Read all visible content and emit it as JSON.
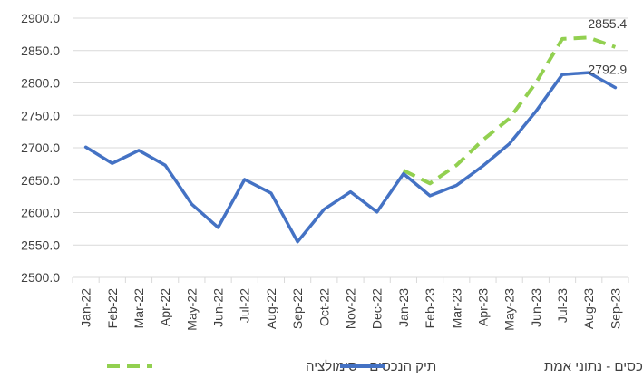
{
  "chart_data": {
    "type": "line",
    "categories": [
      "Jan-22",
      "Feb-22",
      "Mar-22",
      "Apr-22",
      "May-22",
      "Jun-22",
      "Jul-22",
      "Aug-22",
      "Sep-22",
      "Oct-22",
      "Nov-22",
      "Dec-22",
      "Jan-23",
      "Feb-23",
      "Mar-23",
      "Apr-23",
      "May-23",
      "Jun-23",
      "Jul-23",
      "Aug-23",
      "Sep-23"
    ],
    "ylim": [
      2500,
      2900
    ],
    "yticks": [
      "2500.0",
      "2550.0",
      "2600.0",
      "2650.0",
      "2700.0",
      "2750.0",
      "2800.0",
      "2850.0",
      "2900.0"
    ],
    "grid": true,
    "legend_position": "bottom",
    "series": [
      {
        "name": "תיק הנכסים - נתוני אמת",
        "color": "#4472C4",
        "style": "solid",
        "values": [
          2701,
          2676,
          2696,
          2673,
          2613,
          2577,
          2651,
          2630,
          2555,
          2605,
          2632,
          2601,
          2660,
          2626,
          2642,
          2672,
          2706,
          2756,
          2813,
          2816,
          2792.9
        ],
        "end_label": "2792.9"
      },
      {
        "name": "תיק הנכסים - סימולציה",
        "color": "#92D050",
        "style": "dashed",
        "values": [
          null,
          null,
          null,
          null,
          null,
          null,
          null,
          null,
          null,
          null,
          null,
          null,
          2665,
          2645,
          2673,
          2712,
          2745,
          2800,
          2868,
          2870,
          2855.4
        ],
        "end_label": "2855.4"
      }
    ]
  }
}
